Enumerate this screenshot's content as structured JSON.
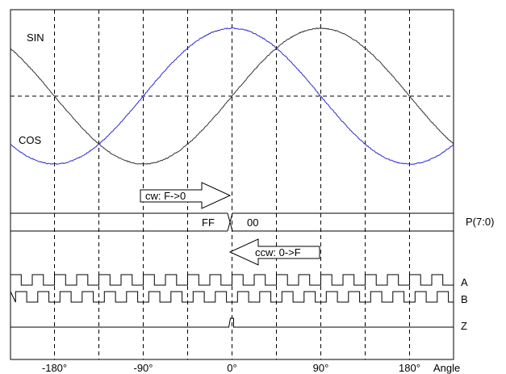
{
  "chart_data": {
    "type": "line",
    "xlabel": "Angle",
    "xticks": [
      {
        "value": -180,
        "label": "-180°"
      },
      {
        "value": -90,
        "label": "-90°"
      },
      {
        "value": 0,
        "label": "0°"
      },
      {
        "value": 90,
        "label": "90°"
      },
      {
        "value": 180,
        "label": "180°"
      }
    ],
    "xlim": [
      -225,
      225
    ],
    "grid": true,
    "series": [
      {
        "name": "SIN",
        "color": "#333333",
        "x_at_peak": 90,
        "amplitude": 1
      },
      {
        "name": "COS",
        "color": "#2b2bcc",
        "x_at_peak": 0,
        "amplitude": 1
      }
    ],
    "position_bus": {
      "label": "P(7:0)",
      "values": [
        {
          "value": "FF",
          "range": [
            -225,
            0
          ]
        },
        {
          "value": "00",
          "range": [
            0,
            225
          ]
        }
      ]
    },
    "annotations": [
      {
        "text": "cw: F->0",
        "direction": "right"
      },
      {
        "text": "ccw: 0->F",
        "direction": "left"
      }
    ],
    "digital_signals": [
      {
        "name": "A",
        "period_deg": 22.5,
        "phase_deg": 0
      },
      {
        "name": "B",
        "period_deg": 22.5,
        "phase_deg": 5.6
      },
      {
        "name": "Z",
        "pulse_at_deg": 0
      }
    ]
  }
}
